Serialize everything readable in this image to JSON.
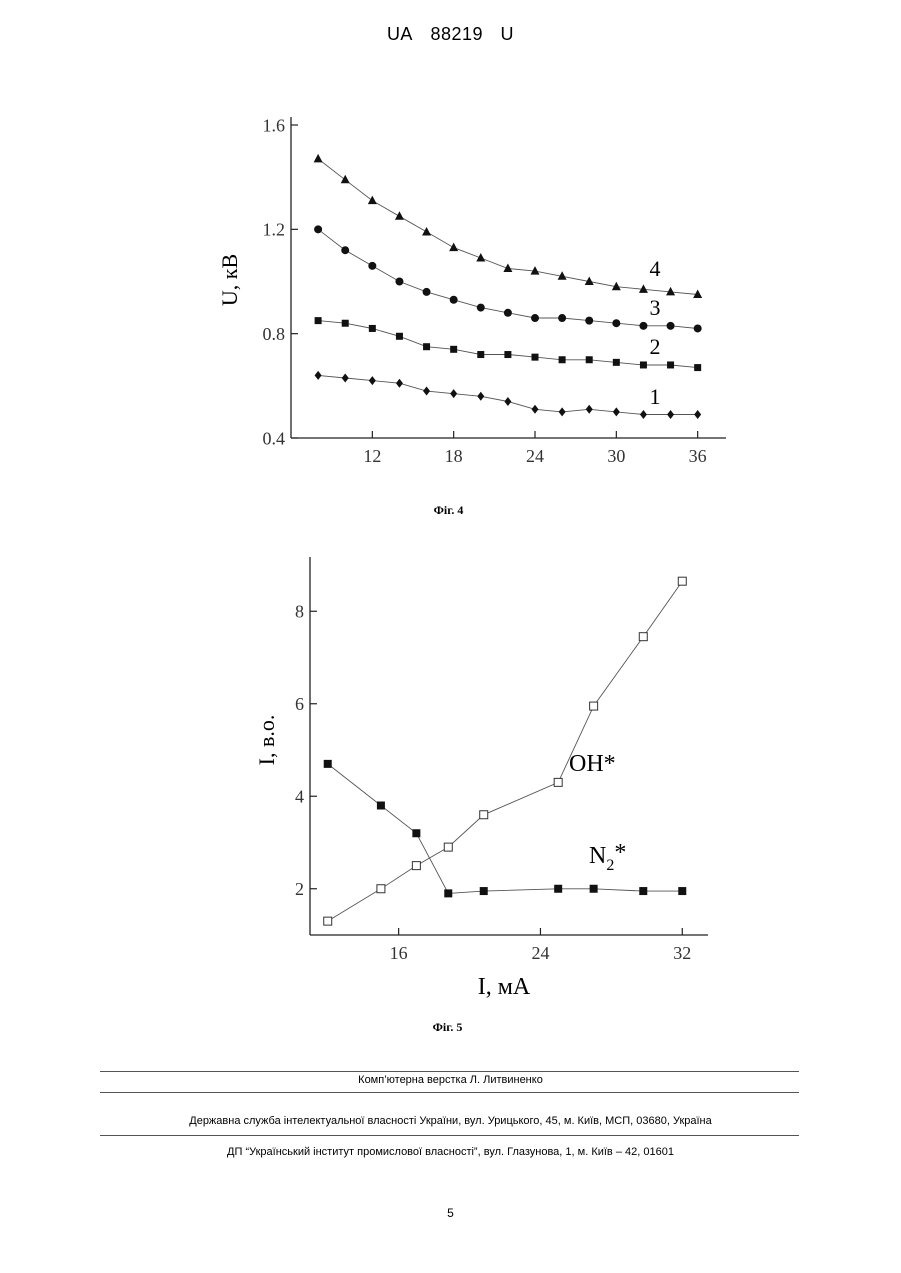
{
  "header": {
    "country": "UA",
    "number": "88219",
    "kind": "U"
  },
  "chart_data": [
    {
      "type": "line",
      "title": "",
      "xlabel": "",
      "ylabel": "U, кВ",
      "xlim": [
        6,
        37.5
      ],
      "ylim": [
        0.4,
        1.6
      ],
      "xticks": [
        "12",
        "18",
        "24",
        "30",
        "36"
      ],
      "yticks": [
        "0.4",
        "0.8",
        "1.2",
        "1.6"
      ],
      "grid": false,
      "series": [
        {
          "name": "1",
          "marker": "diamond",
          "x": [
            8,
            10,
            12,
            14,
            16,
            18,
            20,
            22,
            24,
            26,
            28,
            30,
            32,
            34,
            36
          ],
          "y": [
            0.64,
            0.63,
            0.62,
            0.61,
            0.58,
            0.57,
            0.56,
            0.54,
            0.51,
            0.5,
            0.51,
            0.5,
            0.49,
            0.49,
            0.49
          ]
        },
        {
          "name": "2",
          "marker": "square",
          "x": [
            8,
            10,
            12,
            14,
            16,
            18,
            20,
            22,
            24,
            26,
            28,
            30,
            32,
            34,
            36
          ],
          "y": [
            0.85,
            0.84,
            0.82,
            0.79,
            0.75,
            0.74,
            0.72,
            0.72,
            0.71,
            0.7,
            0.7,
            0.69,
            0.68,
            0.68,
            0.67
          ]
        },
        {
          "name": "3",
          "marker": "circle",
          "x": [
            8,
            10,
            12,
            14,
            16,
            18,
            20,
            22,
            24,
            26,
            28,
            30,
            32,
            34,
            36
          ],
          "y": [
            1.2,
            1.12,
            1.06,
            1.0,
            0.96,
            0.93,
            0.9,
            0.88,
            0.86,
            0.86,
            0.85,
            0.84,
            0.83,
            0.83,
            0.82
          ]
        },
        {
          "name": "4",
          "marker": "triangle",
          "x": [
            8,
            10,
            12,
            14,
            16,
            18,
            20,
            22,
            24,
            26,
            28,
            30,
            32,
            34,
            36
          ],
          "y": [
            1.47,
            1.39,
            1.31,
            1.25,
            1.19,
            1.13,
            1.09,
            1.05,
            1.04,
            1.02,
            1.0,
            0.98,
            0.97,
            0.96,
            0.95
          ]
        }
      ]
    },
    {
      "type": "line",
      "title": "",
      "xlabel": "I, мА",
      "ylabel": "I, в.о.",
      "xlim": [
        11,
        33
      ],
      "ylim": [
        1,
        9
      ],
      "xticks": [
        "16",
        "24",
        "32"
      ],
      "yticks": [
        "2",
        "4",
        "6",
        "8"
      ],
      "grid": false,
      "series": [
        {
          "name": "OH*",
          "marker": "open-square",
          "x": [
            12,
            15,
            17,
            18.8,
            20.8,
            25,
            27,
            29.8,
            32
          ],
          "y": [
            1.3,
            2.0,
            2.5,
            2.9,
            3.6,
            4.3,
            5.95,
            7.45,
            8.65
          ]
        },
        {
          "name": "N2*",
          "marker": "filled-square",
          "x": [
            12,
            15,
            17,
            18.8,
            20.8,
            25,
            27,
            29.8,
            32
          ],
          "y": [
            4.7,
            3.8,
            3.2,
            1.9,
            1.95,
            2.0,
            2.0,
            1.95,
            1.95
          ]
        }
      ]
    }
  ],
  "labels": {
    "fig4": "Фіг. 4",
    "fig5": "Фіг. 5",
    "oh": "OH*",
    "n2_base": "N",
    "n2_sub": "2",
    "n2_star": "*",
    "curve1": "1",
    "curve2": "2",
    "curve3": "3",
    "curve4": "4"
  },
  "footer": {
    "layout": "Комп’ютерна верстка Л. Литвиненко",
    "agency": "Державна служба інтелектуальної власності України, вул. Урицького, 45, м. Київ, МСП, 03680, Україна",
    "institute": "ДП “Український інститут промислової власності”, вул. Глазунова, 1, м. Київ – 42, 01601",
    "page": "5"
  }
}
